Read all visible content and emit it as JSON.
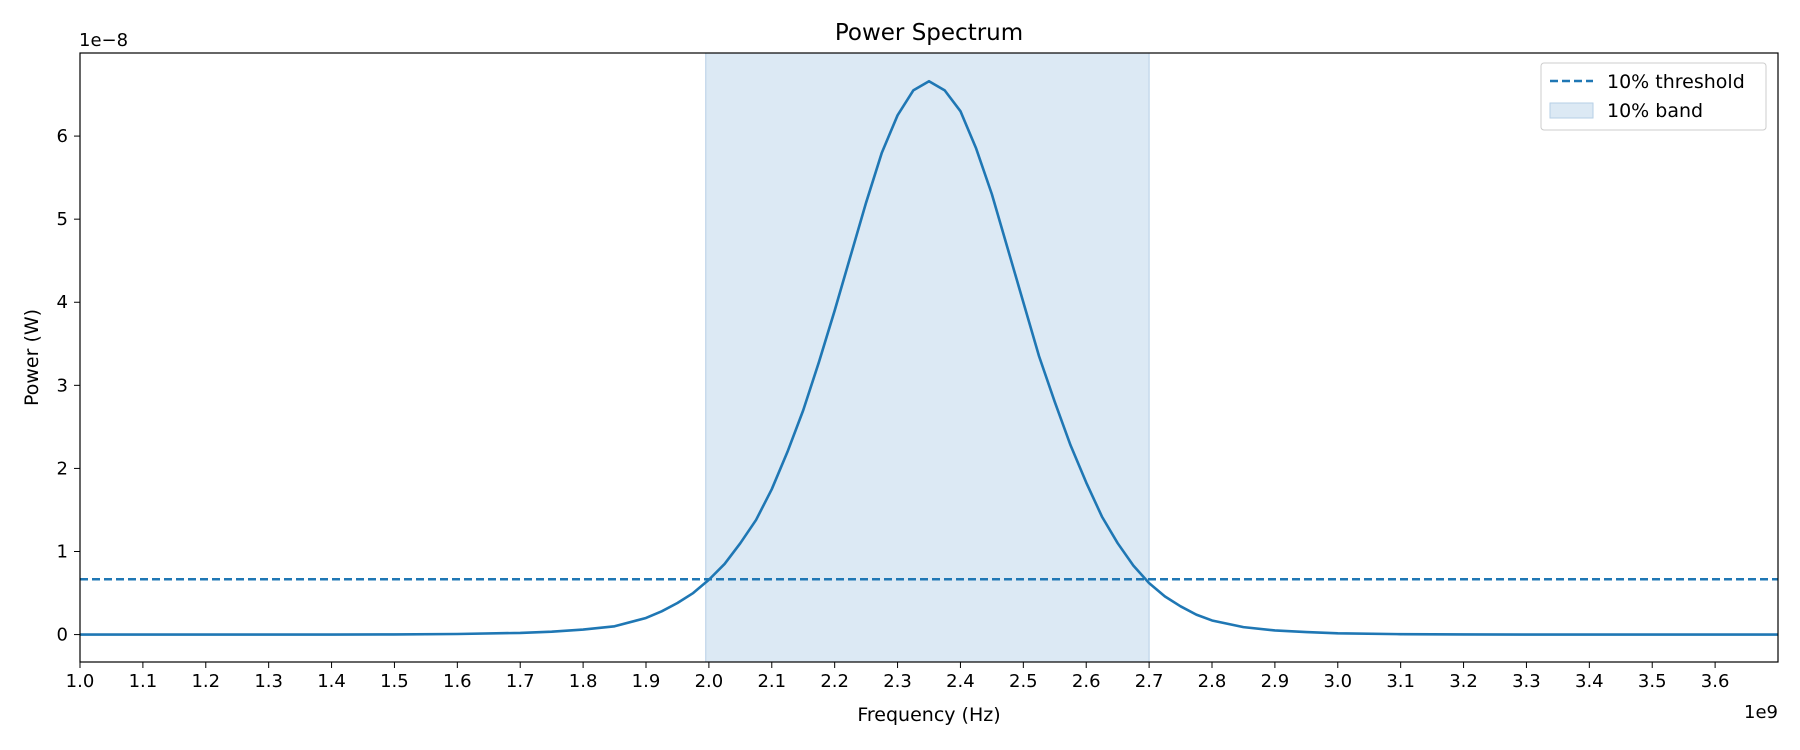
{
  "chart_data": {
    "type": "line",
    "title": "Power Spectrum",
    "xlabel": "Frequency (Hz)",
    "ylabel": "Power (W)",
    "x_offset_label": "1e9",
    "y_offset_label": "1e−8",
    "x_scale": 1000000000.0,
    "y_scale": 1e-08,
    "xlim": [
      1.0,
      3.7
    ],
    "ylim": [
      -0.33,
      7.0
    ],
    "x_ticks": [
      "1.0",
      "1.1",
      "1.2",
      "1.3",
      "1.4",
      "1.5",
      "1.6",
      "1.7",
      "1.8",
      "1.9",
      "2.0",
      "2.1",
      "2.2",
      "2.3",
      "2.4",
      "2.5",
      "2.6",
      "2.7",
      "2.8",
      "2.9",
      "3.0",
      "3.1",
      "3.2",
      "3.3",
      "3.4",
      "3.5",
      "3.6"
    ],
    "y_ticks": [
      "0",
      "1",
      "2",
      "3",
      "4",
      "5",
      "6"
    ],
    "grid": false,
    "legend_position": "top-right",
    "colors": {
      "line": "#1f77b4",
      "band_fill": "#dce9f4",
      "band_edge": "#b6cfe6"
    },
    "series": [
      {
        "x": [
          1.0,
          1.1,
          1.2,
          1.3,
          1.4,
          1.5,
          1.6,
          1.7,
          1.75,
          1.8,
          1.85,
          1.9,
          1.925,
          1.95,
          1.975,
          2.0,
          2.025,
          2.05,
          2.075,
          2.1,
          2.125,
          2.15,
          2.175,
          2.2,
          2.225,
          2.25,
          2.275,
          2.3,
          2.325,
          2.35,
          2.375,
          2.4,
          2.425,
          2.45,
          2.475,
          2.5,
          2.525,
          2.55,
          2.575,
          2.6,
          2.625,
          2.65,
          2.675,
          2.7,
          2.725,
          2.75,
          2.775,
          2.8,
          2.85,
          2.9,
          2.95,
          3.0,
          3.1,
          3.2,
          3.3,
          3.4,
          3.5,
          3.6,
          3.7
        ],
        "y": [
          0.0,
          0.0,
          0.0,
          0.0,
          0.0,
          0.002,
          0.007,
          0.02,
          0.035,
          0.06,
          0.1,
          0.2,
          0.28,
          0.38,
          0.5,
          0.66,
          0.85,
          1.1,
          1.38,
          1.75,
          2.2,
          2.7,
          3.28,
          3.9,
          4.55,
          5.2,
          5.8,
          6.25,
          6.55,
          6.66,
          6.55,
          6.3,
          5.85,
          5.3,
          4.65,
          4.0,
          3.35,
          2.8,
          2.28,
          1.83,
          1.42,
          1.1,
          0.83,
          0.62,
          0.46,
          0.34,
          0.24,
          0.17,
          0.09,
          0.05,
          0.03,
          0.015,
          0.005,
          0.002,
          0.0,
          0.0,
          0.0,
          0.0,
          0.0
        ]
      }
    ],
    "threshold": {
      "label": "10% threshold",
      "value": 0.666
    },
    "band": {
      "label": "10% band",
      "x_start": 1.995,
      "x_end": 2.7
    }
  }
}
